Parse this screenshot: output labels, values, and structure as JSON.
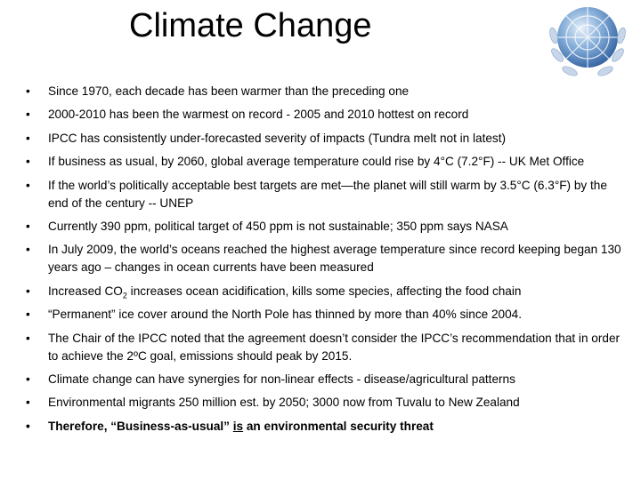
{
  "title": "Climate Change",
  "bullets": [
    "Since 1970, each decade has been warmer than the preceding one",
    "2000-2010 has been the warmest on record - 2005 and 2010 hottest on record",
    "IPCC has consistently under-forecasted severity of impacts (Tundra melt not in latest)",
    "If business as usual, by 2060, global average temperature could rise by 4°C (7.2°F) -- UK Met Office",
    "If the world’s politically acceptable best targets are met—the planet will still warm by 3.5°C (6.3°F) by the end of the century -- UNEP",
    "Currently 390 ppm, political target of 450 ppm is not sustainable; 350 ppm says NASA",
    "In July 2009, the world’s oceans reached the highest average temperature since record keeping began 130 years ago – changes in ocean currents have been measured",
    [
      "Increased CO",
      "2",
      " increases ocean acidification, kills some species, affecting the food chain"
    ],
    "“Permanent” ice cover around the North Pole has thinned by more than 40% since 2004.",
    "The Chair of the IPCC noted that the agreement doesn’t consider the IPCC’s recommendation that in order to achieve the 2ºC goal, emissions should peak by 2015.",
    "Climate change can have synergies for non-linear effects  - disease/agricultural patterns",
    "Environmental migrants 250 million est. by 2050; 3000 now from Tuvalu to New Zealand",
    [
      "Therefore, “Business-as-usual” ",
      "is",
      " an environmental security threat"
    ]
  ]
}
